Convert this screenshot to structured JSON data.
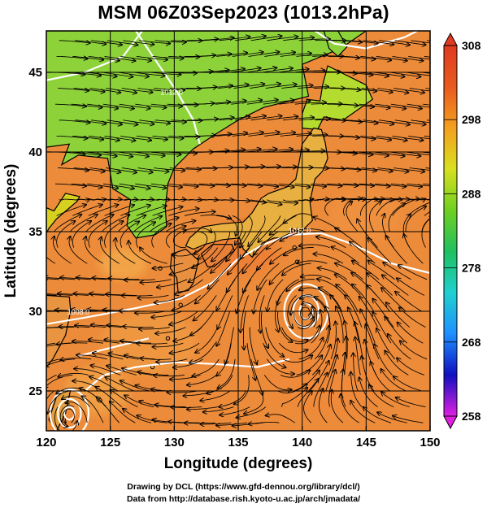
{
  "title": "MSM 06Z03Sep2023 (1013.2hPa)",
  "x_axis": {
    "title": "Longitude (degrees)",
    "range": [
      120,
      150
    ],
    "ticks": [
      "120",
      "125",
      "130",
      "135",
      "140",
      "145",
      "150"
    ]
  },
  "y_axis": {
    "title": "Latitude  (degrees)",
    "range": [
      22.5,
      47.6
    ],
    "ticks": [
      "25",
      "30",
      "35",
      "40",
      "45"
    ]
  },
  "colorbar": {
    "range": [
      258,
      308
    ],
    "ticks": [
      "258",
      "268",
      "278",
      "288",
      "298",
      "308"
    ],
    "colors": [
      "#e020e0",
      "#1010c0",
      "#1e90ff",
      "#20d0d0",
      "#20c060",
      "#70d020",
      "#d8e020",
      "#f4a020",
      "#e85a20",
      "#e03a20"
    ]
  },
  "contour_labels": [
    {
      "text": "1012.0",
      "lon": 139.8,
      "lat": 34.9
    },
    {
      "text": "1008.0",
      "lon": 122.5,
      "lat": 29.8
    },
    {
      "text": "1012.0",
      "lon": 129.8,
      "lat": 43.6
    }
  ],
  "credits": [
    "Drawing by DCL (https://www.gfd-dennou.org/library/dcl/)",
    "Data from http://database.rish.kyoto-u.ac.jp/arch/jmadata/"
  ],
  "colors": {
    "ocean": "#ec8b3a",
    "land": "#8ed23a",
    "grid": "#000000",
    "streamline": "#000000",
    "contour": "#ffffff"
  },
  "features": {
    "typhoon_center": {
      "lon": 140.3,
      "lat": 30.0
    },
    "secondary_low": {
      "lon": 121.8,
      "lat": 23.6
    }
  }
}
